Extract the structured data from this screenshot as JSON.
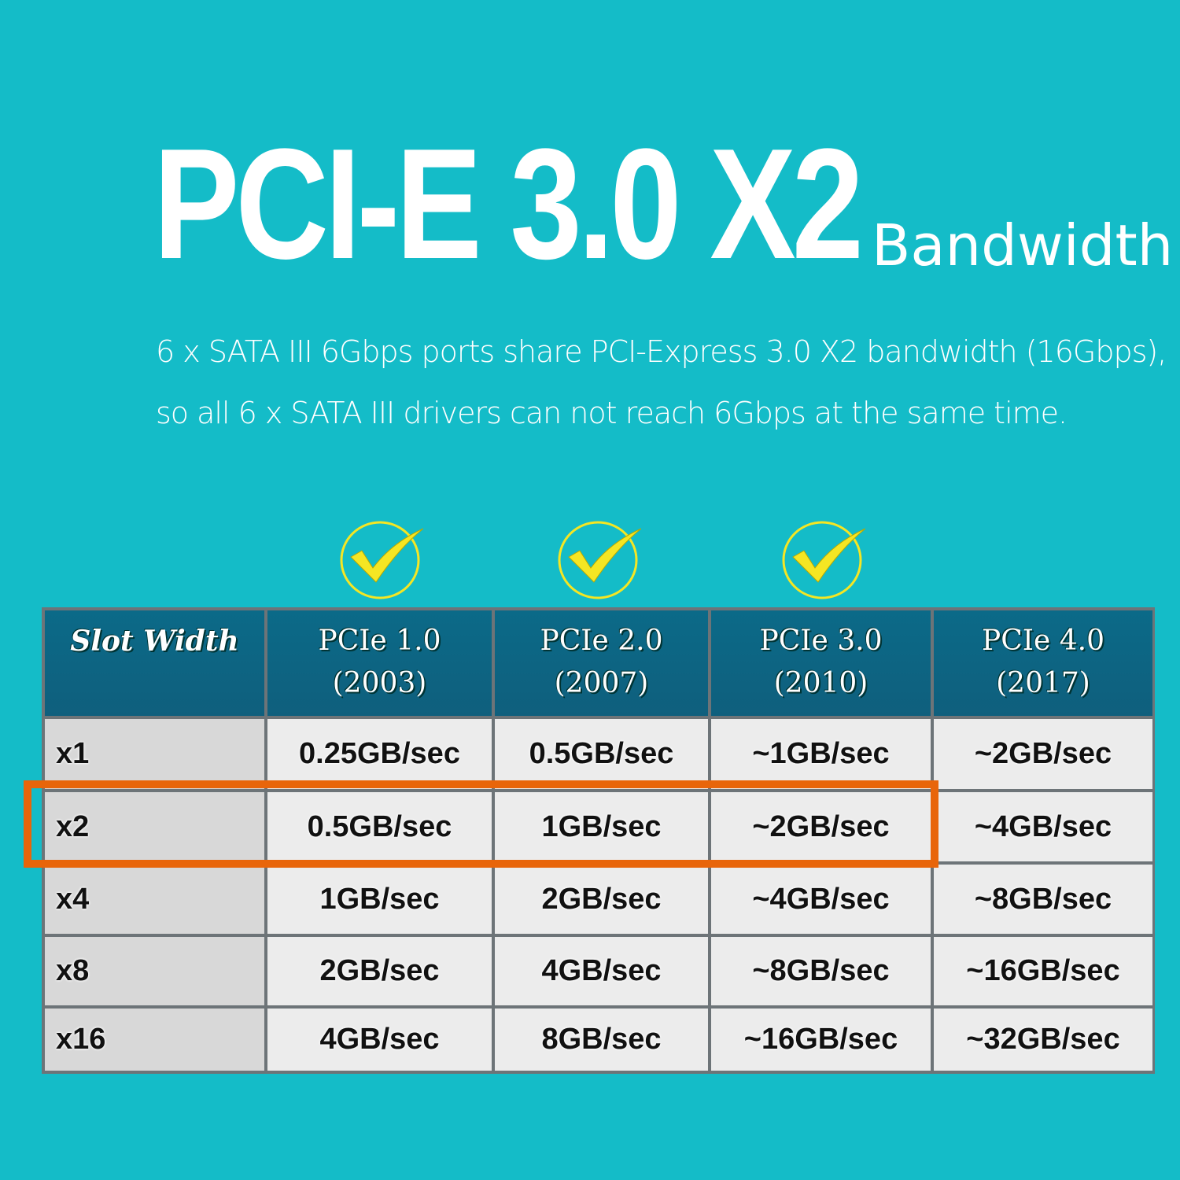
{
  "headline": {
    "main": "PCI-E 3.0 X2",
    "suffix": "Bandwidth"
  },
  "description": [
    "6 x SATA III 6Gbps ports share PCI-Express 3.0 X2 bandwidth (16Gbps),",
    "so all 6 x SATA III drivers can not reach 6Gbps at the same time."
  ],
  "colors": {
    "background": "#14bcc8",
    "header": "#0b6a88",
    "highlight": "#e8650a",
    "check": "#f5e623"
  },
  "checkmarks": [
    {
      "icon": "check-circle-icon",
      "column": "PCIe 1.0"
    },
    {
      "icon": "check-circle-icon",
      "column": "PCIe 2.0"
    },
    {
      "icon": "check-circle-icon",
      "column": "PCIe 3.0"
    }
  ],
  "table": {
    "headers": [
      {
        "line1": "Slot Width",
        "line2": ""
      },
      {
        "line1": "PCIe 1.0",
        "line2": "(2003)"
      },
      {
        "line1": "PCIe 2.0",
        "line2": "(2007)"
      },
      {
        "line1": "PCIe 3.0",
        "line2": "(2010)"
      },
      {
        "line1": "PCIe 4.0",
        "line2": "(2017)"
      }
    ],
    "rows": [
      [
        "x1",
        "0.25GB/sec",
        "0.5GB/sec",
        "~1GB/sec",
        "~2GB/sec"
      ],
      [
        "x2",
        "0.5GB/sec",
        "1GB/sec",
        "~2GB/sec",
        "~4GB/sec"
      ],
      [
        "x4",
        "1GB/sec",
        "2GB/sec",
        "~4GB/sec",
        "~8GB/sec"
      ],
      [
        "x8",
        "2GB/sec",
        "4GB/sec",
        "~8GB/sec",
        "~16GB/sec"
      ],
      [
        "x16",
        "4GB/sec",
        "8GB/sec",
        "~16GB/sec",
        "~32GB/sec"
      ]
    ],
    "highlighted_row": "x2",
    "highlighted_columns": [
      "Slot Width",
      "PCIe 1.0",
      "PCIe 2.0",
      "PCIe 3.0"
    ]
  }
}
